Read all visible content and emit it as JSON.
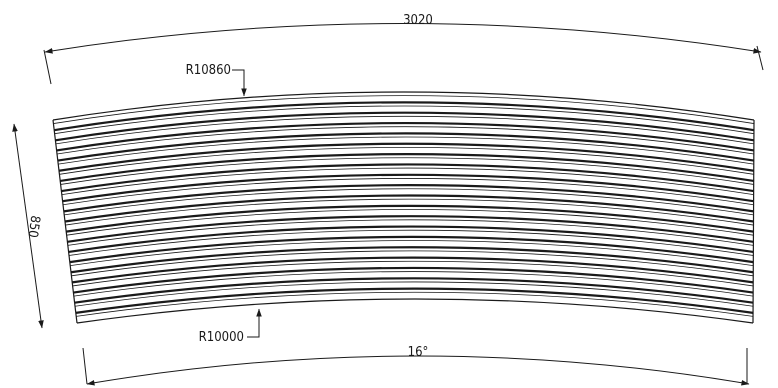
{
  "drawing": {
    "colors": {
      "line": "#1a1a1a",
      "background": "#ffffff"
    },
    "dimensions": {
      "top_arc_length": "3020",
      "height": "850",
      "outer_radius": "R10860",
      "inner_radius": "R10000",
      "angle": "16°"
    },
    "strip_count": 20
  }
}
